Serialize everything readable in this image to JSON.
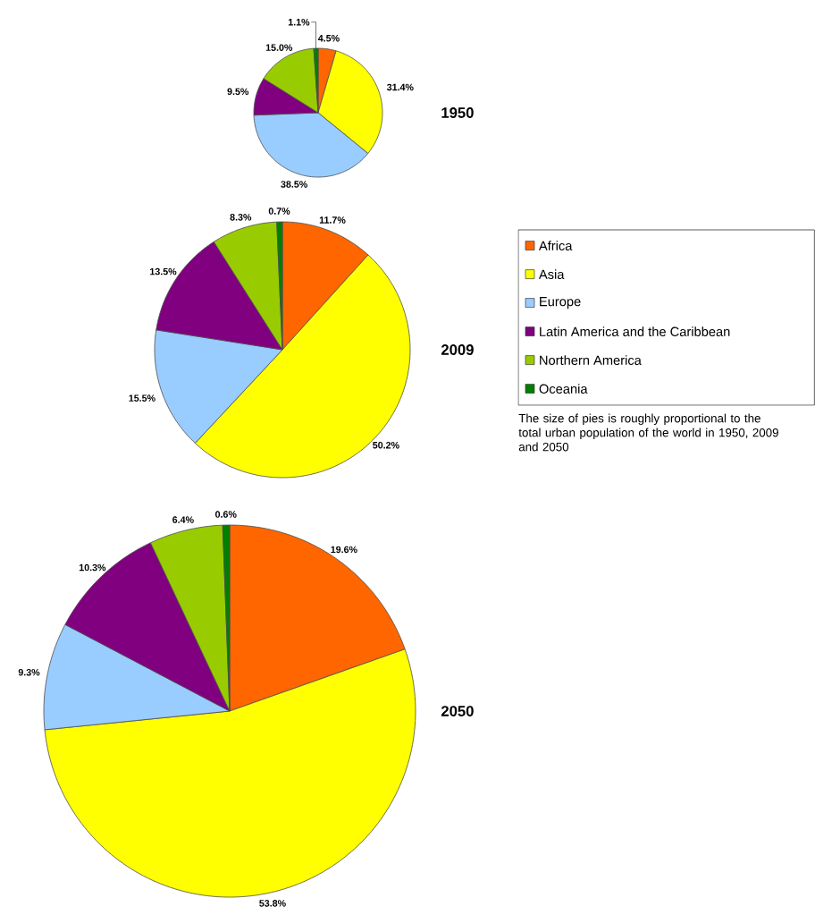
{
  "chart_data": [
    {
      "type": "pie",
      "title": "1950",
      "categories": [
        null,
        null,
        null,
        null,
        null,
        null
      ],
      "values": [
        4.5,
        31.4,
        38.5,
        9.5,
        15.0,
        1.1
      ],
      "colors": [
        "#ff6600",
        "#ffff00",
        "#99ccff",
        "#800080",
        "#99cc00",
        "#008000"
      ],
      "value_labels": [
        "4.5%",
        "31.4%",
        "38.5%",
        "9.5%",
        "15.0%",
        "1.1%"
      ]
    },
    {
      "type": "pie",
      "title": "2009",
      "categories": [
        "Africa",
        "Asia",
        "Europe",
        "Latin America and the Caribbean",
        "Northern America",
        "Oceania"
      ],
      "values": [
        11.7,
        50.2,
        15.5,
        13.5,
        8.3,
        0.7
      ],
      "colors": [
        "#ff6600",
        "#ffff00",
        "#99ccff",
        "#800080",
        "#99cc00",
        "#008000"
      ],
      "value_labels": [
        "11.7%",
        "50.2%",
        "15.5%",
        "13.5%",
        "8.3%",
        "0.7%"
      ],
      "legend": "right",
      "annotations": [
        "The size of pies is roughly proportional to the total urban population of the world in 1950, 2009 and 2050"
      ]
    },
    {
      "type": "pie",
      "title": "2050",
      "categories": [
        null,
        null,
        null,
        null,
        null,
        null
      ],
      "values": [
        19.6,
        53.8,
        9.3,
        10.3,
        6.4,
        0.6
      ],
      "colors": [
        "#ff6600",
        "#ffff00",
        "#99ccff",
        "#800080",
        "#99cc00",
        "#008000"
      ],
      "value_labels": [
        "19.6%",
        "53.8%",
        "9.3%",
        "10.3%",
        "6.4%",
        "0.6%"
      ]
    }
  ]
}
